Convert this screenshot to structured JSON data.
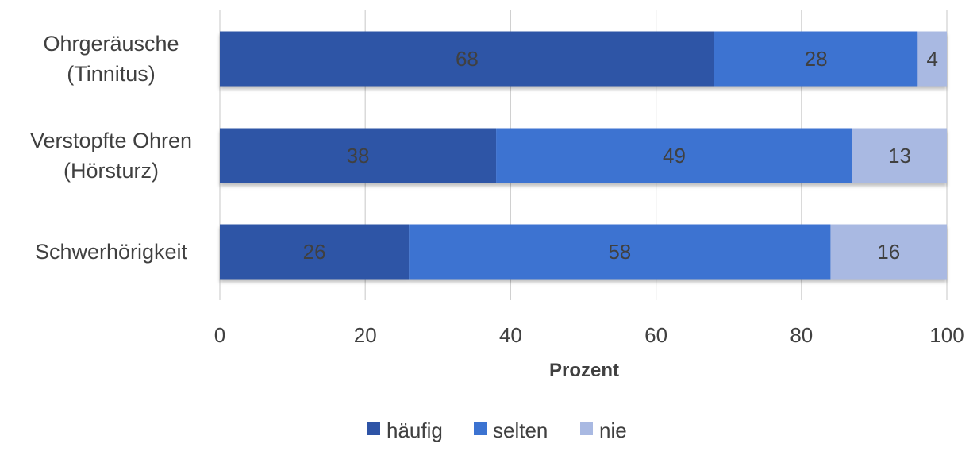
{
  "chart_data": {
    "type": "bar",
    "orientation": "horizontal",
    "stacked": true,
    "categories": [
      [
        "Ohrgeräusche",
        "(Tinnitus)"
      ],
      [
        "Verstopfte Ohren",
        "(Hörsturz)"
      ],
      [
        "Schwerhörigkeit"
      ]
    ],
    "series": [
      {
        "name": "häufig",
        "values": [
          68,
          38,
          26
        ],
        "color": "#2E54A6"
      },
      {
        "name": "selten",
        "values": [
          28,
          49,
          58
        ],
        "color": "#3C73D1"
      },
      {
        "name": "nie",
        "values": [
          4,
          13,
          16
        ],
        "color": "#A9B9E2"
      }
    ],
    "xlabel": "Prozent",
    "ylabel": "",
    "xlim": [
      0,
      100
    ],
    "xticks": [
      0,
      20,
      40,
      60,
      80,
      100
    ],
    "grid": true,
    "legend": "bottom"
  }
}
